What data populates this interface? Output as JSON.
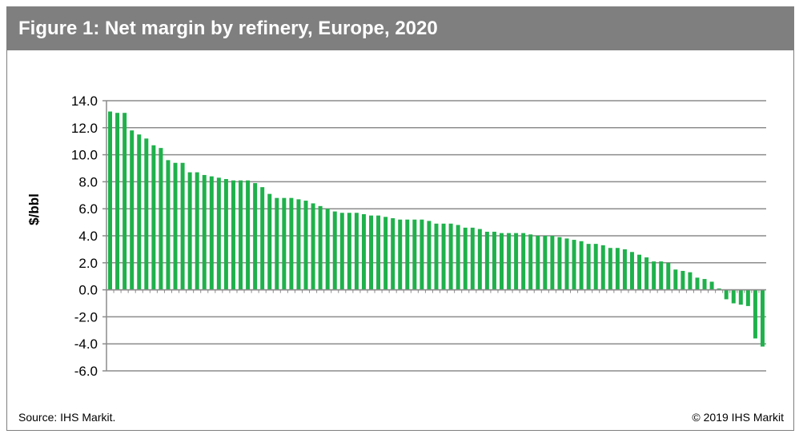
{
  "header": {
    "title": "Figure 1: Net margin by refinery, Europe, 2020"
  },
  "footer": {
    "source": "Source: IHS Markit.",
    "copyright": "© 2019 IHS Markit"
  },
  "colors": {
    "title_bar": "#7f7f7f",
    "bar": "#1fb14b",
    "grid": "#8c8c8c"
  },
  "chart_data": {
    "type": "bar",
    "title": "",
    "xlabel": "",
    "ylabel": "$/bbl",
    "ylim": [
      -6.0,
      14.0
    ],
    "yticks": [
      "14.0",
      "12.0",
      "10.0",
      "8.0",
      "6.0",
      "4.0",
      "2.0",
      "0.0",
      "-2.0",
      "-4.0",
      "-6.0"
    ],
    "grid": true,
    "legend": "none",
    "values": [
      13.2,
      13.1,
      13.1,
      11.8,
      11.5,
      11.2,
      10.7,
      10.5,
      9.6,
      9.4,
      9.4,
      8.7,
      8.7,
      8.5,
      8.4,
      8.3,
      8.2,
      8.1,
      8.1,
      8.1,
      7.9,
      7.6,
      7.1,
      6.8,
      6.8,
      6.8,
      6.7,
      6.6,
      6.4,
      6.2,
      6.0,
      5.8,
      5.7,
      5.7,
      5.7,
      5.6,
      5.5,
      5.5,
      5.4,
      5.3,
      5.2,
      5.2,
      5.2,
      5.2,
      5.1,
      4.9,
      4.9,
      4.9,
      4.8,
      4.6,
      4.6,
      4.5,
      4.3,
      4.3,
      4.2,
      4.2,
      4.2,
      4.2,
      4.1,
      4.0,
      4.0,
      4.0,
      3.9,
      3.8,
      3.7,
      3.6,
      3.4,
      3.4,
      3.3,
      3.1,
      3.1,
      3.0,
      2.8,
      2.6,
      2.4,
      2.1,
      2.1,
      2.0,
      1.5,
      1.4,
      1.3,
      0.9,
      0.8,
      0.6,
      0.1,
      -0.7,
      -1.0,
      -1.1,
      -1.2,
      -3.6,
      -4.2
    ]
  }
}
